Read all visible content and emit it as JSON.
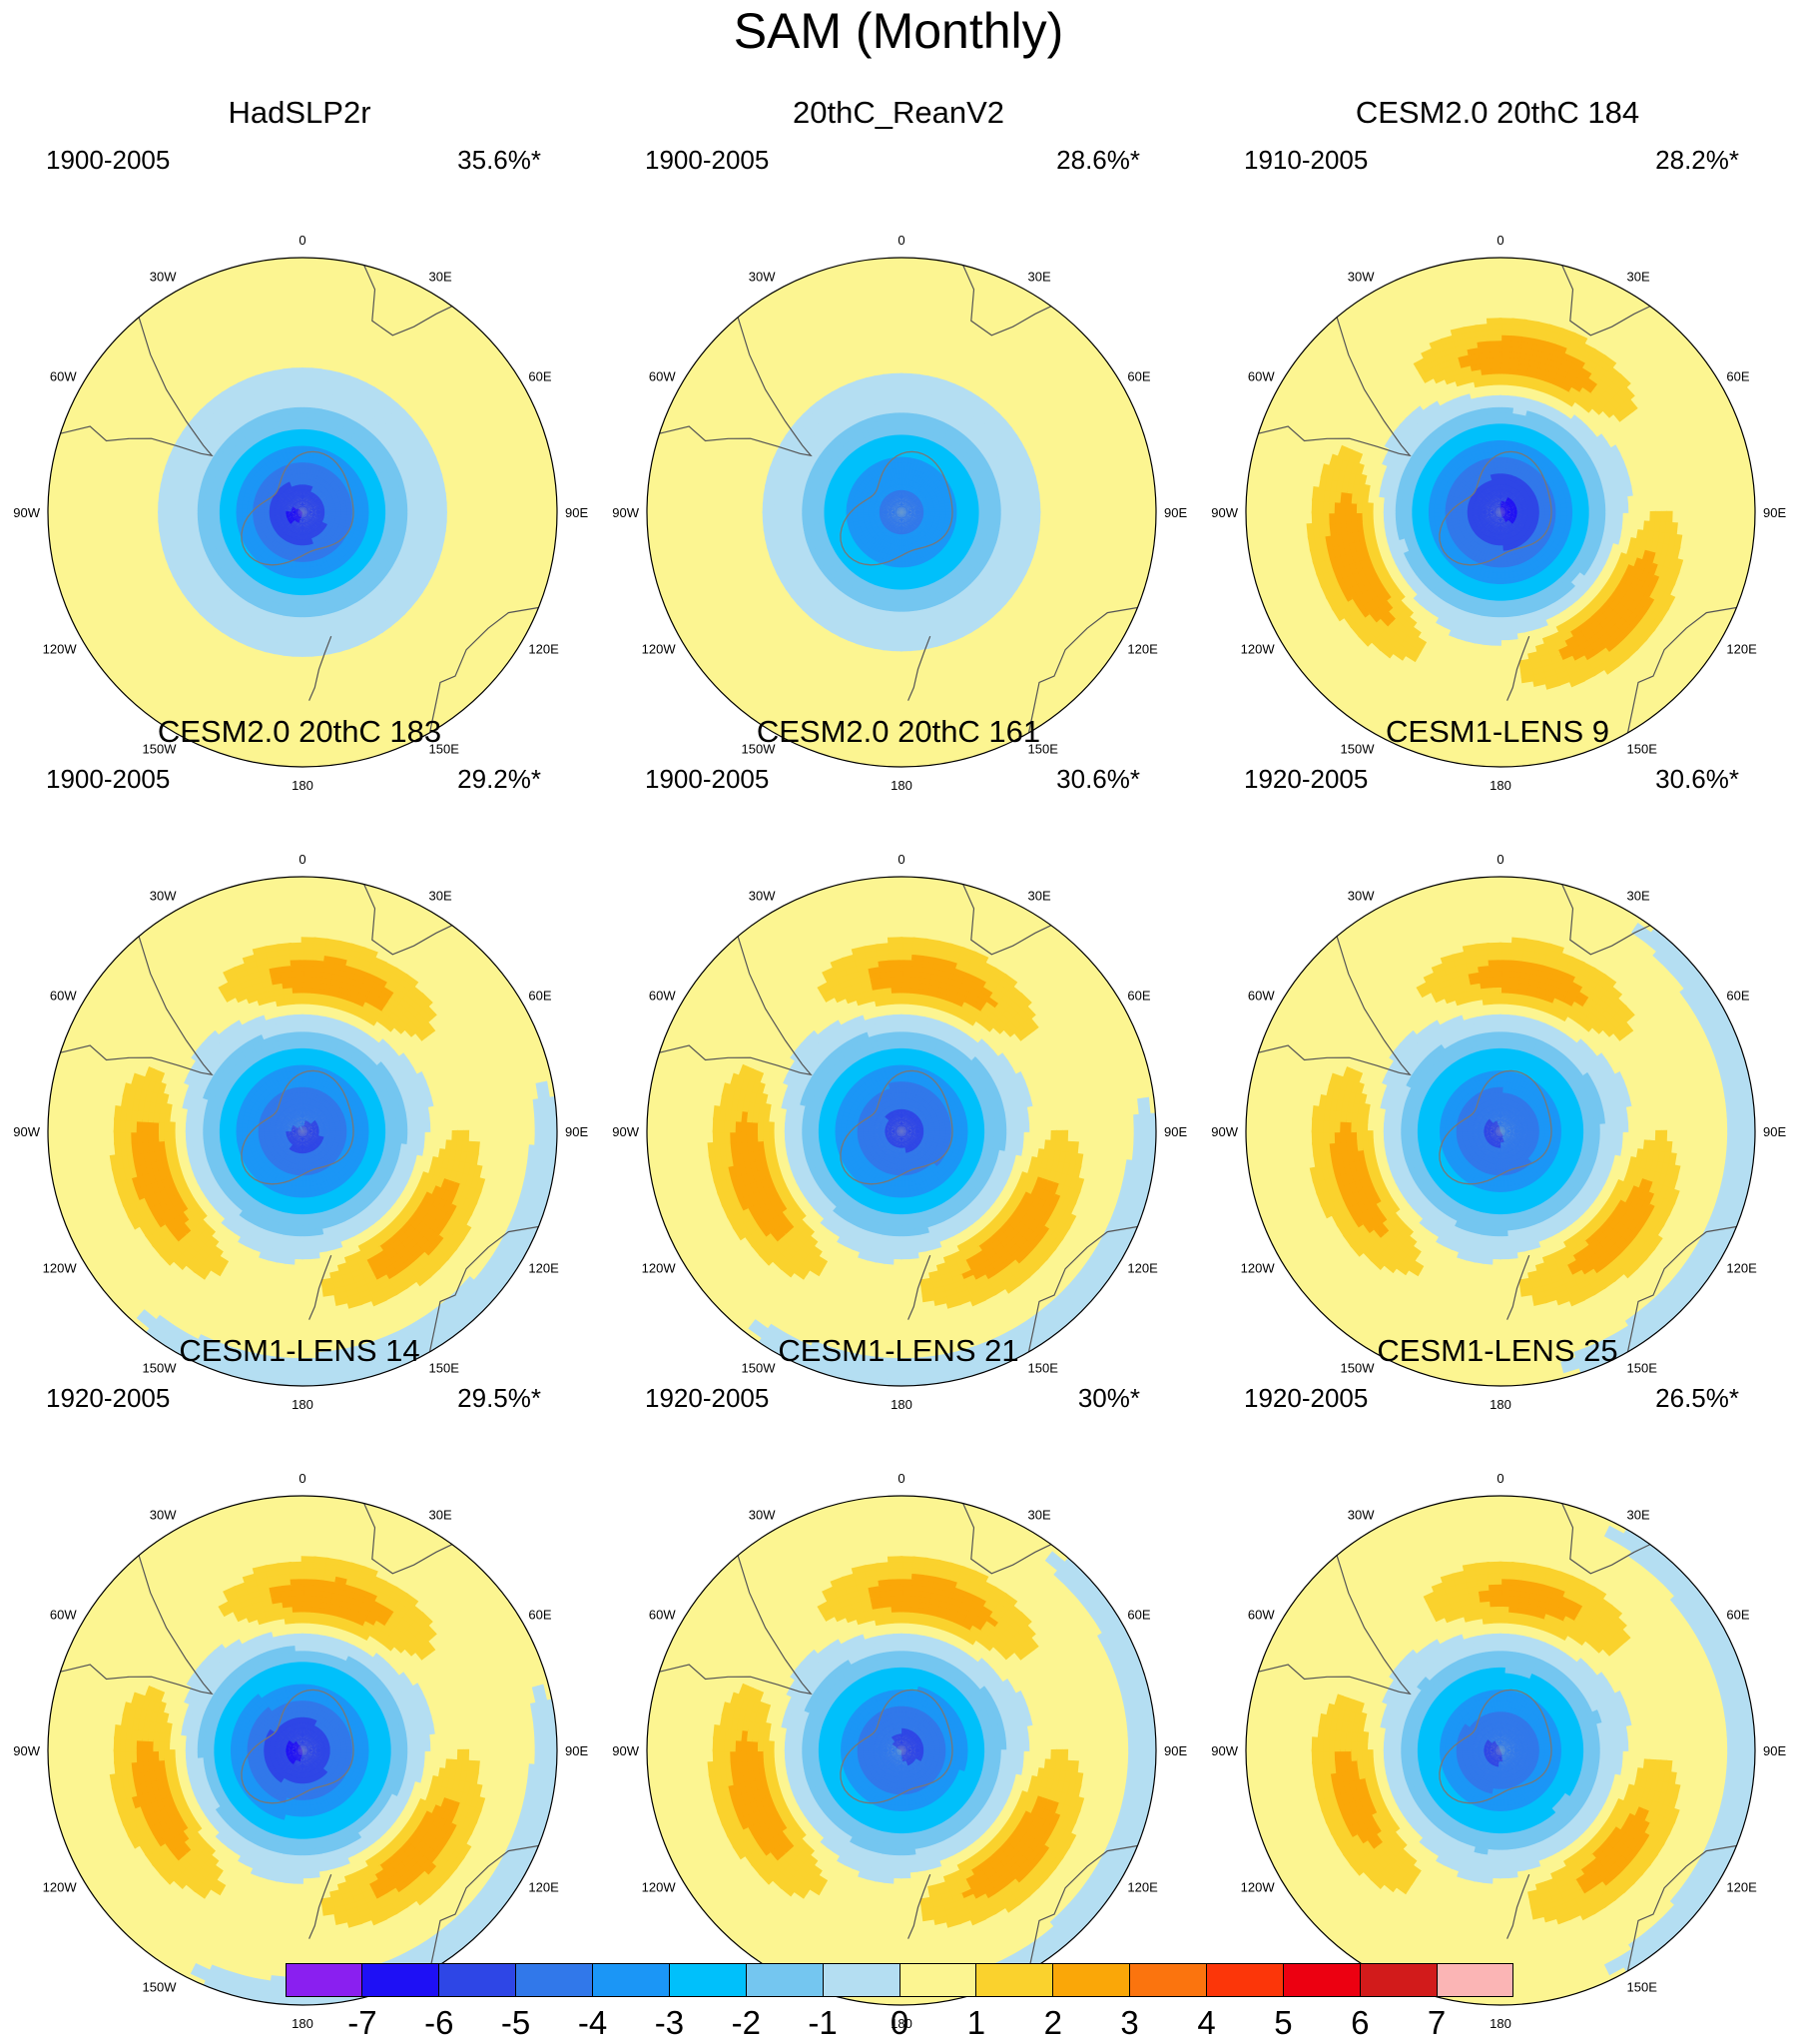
{
  "title": "SAM (Monthly)",
  "colors": {
    "land_outline": "#555555",
    "antarctic_outline": "#777777",
    "levels": [
      "#8a1ff0",
      "#1e10f5",
      "#2e46e6",
      "#3178ea",
      "#1b96f6",
      "#00c0fb",
      "#74c6f0",
      "#b4def2",
      "#fcf591",
      "#fad22d",
      "#faa708",
      "#fb740e",
      "#fc3609",
      "#ec0011",
      "#d21b1b",
      "#fbb5b5"
    ]
  },
  "colorbar": {
    "labels": [
      "-7",
      "-6",
      "-5",
      "-4",
      "-3",
      "-2",
      "-1",
      "0",
      "1",
      "2",
      "3",
      "4",
      "5",
      "6",
      "7"
    ]
  },
  "longitude_labels": [
    "0",
    "30E",
    "60E",
    "90E",
    "120E",
    "150E",
    "180",
    "150W",
    "120W",
    "90W",
    "60W",
    "30W"
  ],
  "panels": [
    {
      "title": "HadSLP2r",
      "period": "1900-2005",
      "variance": "35.6%*",
      "pattern": {
        "center": -5.6,
        "ring": 0,
        "outer": 0,
        "core_lon": 250,
        "core_r": 0.18,
        "elong": 1.0,
        "outer_lon": 0
      }
    },
    {
      "title": "20thC_ReanV2",
      "period": "1900-2005",
      "variance": "28.6%*",
      "pattern": {
        "center": -4.6,
        "ring": 0,
        "outer": 0,
        "core_lon": 0,
        "core_r": 0.0,
        "elong": 1.0,
        "outer_lon": 0
      }
    },
    {
      "title": "CESM2.0 20thC 184",
      "period": "1910-2005",
      "variance": "28.2%*",
      "pattern": {
        "center": -6.0,
        "ring": 2.8,
        "outer": 0,
        "core_lon": 80,
        "core_r": 0.12,
        "elong": 1.0,
        "outer_lon": 0
      }
    },
    {
      "title": "CESM2.0 20thC 183",
      "period": "1900-2005",
      "variance": "29.2%*",
      "pattern": {
        "center": -5.4,
        "ring": 2.6,
        "outer": -1.2,
        "core_lon": 160,
        "core_r": 0.05,
        "elong": 1.0,
        "outer_lon": 150
      }
    },
    {
      "title": "CESM2.0 20thC 161",
      "period": "1900-2005",
      "variance": "30.6%*",
      "pattern": {
        "center": -5.5,
        "ring": 2.7,
        "outer": -1.1,
        "core_lon": 60,
        "core_r": 0.05,
        "elong": 1.0,
        "outer_lon": 150
      }
    },
    {
      "title": "CESM1-LENS 9",
      "period": "1920-2005",
      "variance": "30.6%*",
      "pattern": {
        "center": -5.2,
        "ring": 2.5,
        "outer": -1.0,
        "core_lon": 250,
        "core_r": 0.08,
        "elong": 1.0,
        "outer_lon": 100
      }
    },
    {
      "title": "CESM1-LENS 14",
      "period": "1920-2005",
      "variance": "29.5%*",
      "pattern": {
        "center": -5.8,
        "ring": 2.6,
        "outer": -1.0,
        "core_lon": 260,
        "core_r": 0.16,
        "elong": 1.0,
        "outer_lon": 140
      }
    },
    {
      "title": "CESM1-LENS 21",
      "period": "1920-2005",
      "variance": "30%*",
      "pattern": {
        "center": -5.3,
        "ring": 2.7,
        "outer": -0.9,
        "core_lon": 60,
        "core_r": 0.08,
        "elong": 1.0,
        "outer_lon": 100
      }
    },
    {
      "title": "CESM1-LENS 25",
      "period": "1920-2005",
      "variance": "26.5%*",
      "pattern": {
        "center": -5.1,
        "ring": 2.3,
        "outer": -0.9,
        "core_lon": 250,
        "core_r": 0.1,
        "elong": 1.0,
        "outer_lon": 90
      }
    }
  ]
}
